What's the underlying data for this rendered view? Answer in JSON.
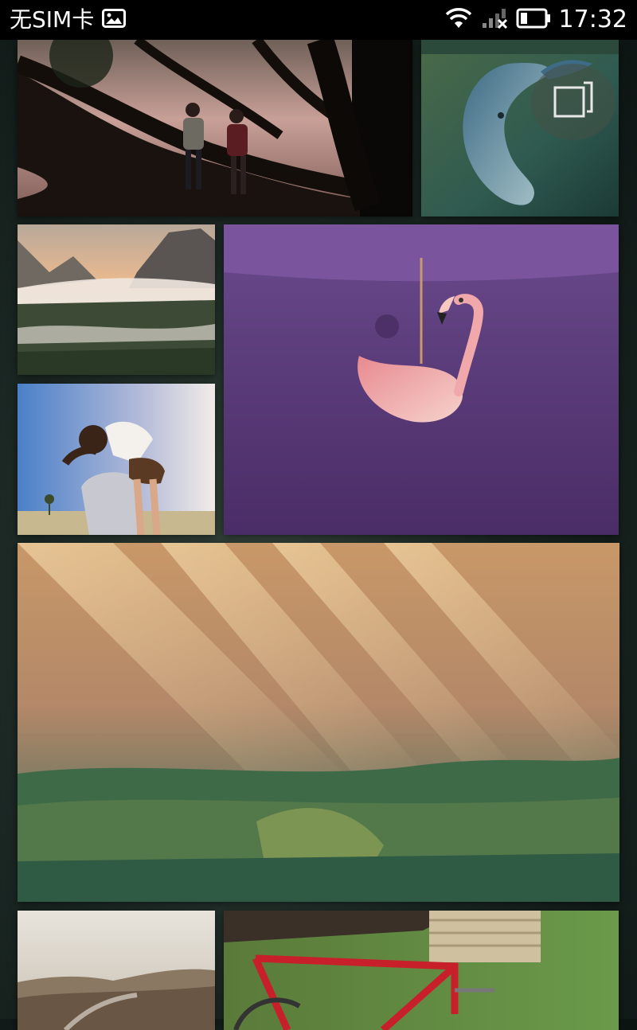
{
  "status_bar": {
    "carrier": "无SIM卡",
    "time": "17:32",
    "icons": [
      "image-notification-icon",
      "wifi-icon",
      "no-signal-icon",
      "battery-icon"
    ]
  },
  "gallery": {
    "tiles": [
      {
        "id": "lovers-in-tree"
      },
      {
        "id": "whale-painting"
      },
      {
        "id": "misty-valley"
      },
      {
        "id": "couple-embrace"
      },
      {
        "id": "hanging-flamingo"
      },
      {
        "id": "sunlit-meadow"
      },
      {
        "id": "mountain-road"
      },
      {
        "id": "red-bicycle"
      }
    ]
  },
  "floating_button": {
    "icon": "crop-icon"
  }
}
